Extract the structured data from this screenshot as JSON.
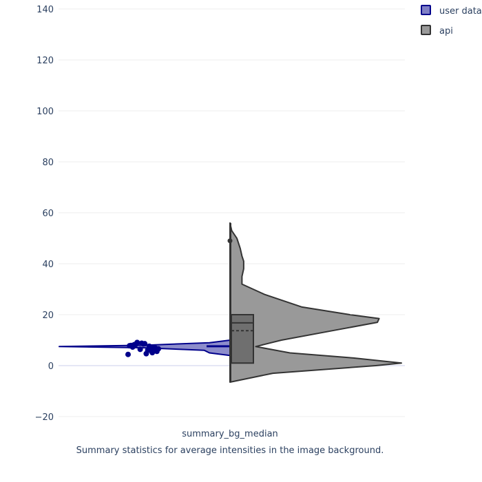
{
  "chart_data": {
    "type": "violin",
    "title": "",
    "xlabel": "",
    "ylabel": "",
    "ylim": [
      -24,
      140
    ],
    "yticks": [
      -20,
      0,
      20,
      40,
      60,
      80,
      100,
      120,
      140
    ],
    "ytick_labels": [
      "−20",
      "0",
      "20",
      "40",
      "60",
      "80",
      "100",
      "120",
      "140"
    ],
    "categories": [
      "summary_bg_median"
    ],
    "caption": "Summary statistics for average intensities in the image background.",
    "grid": true,
    "legend_position": "top-right",
    "series": [
      {
        "name": "user data",
        "side": "negative",
        "color": "#00008b",
        "fill": "#7f7fc5",
        "density": [
          [
            4.0,
            0.0
          ],
          [
            5.0,
            0.12
          ],
          [
            6.0,
            0.15
          ],
          [
            7.0,
            0.5
          ],
          [
            7.5,
            1.0
          ],
          [
            8.0,
            0.5
          ],
          [
            9.0,
            0.12
          ],
          [
            10.0,
            0.0
          ]
        ],
        "box": {
          "q1": 7.2,
          "median": 7.6,
          "q3": 8.0
        },
        "points": [
          7.6,
          8.2,
          5.6,
          6.4,
          8.6,
          4.4,
          7.0,
          9.1,
          6.1,
          7.9,
          5.1,
          8.8,
          6.9,
          7.3,
          4.7,
          8.3,
          6.6,
          7.8,
          5.9,
          8.5
        ]
      },
      {
        "name": "api",
        "side": "positive",
        "color": "#333333",
        "fill": "#999999",
        "density": [
          [
            -6.5,
            0.0
          ],
          [
            -3.0,
            0.25
          ],
          [
            0.0,
            0.85
          ],
          [
            1.0,
            1.0
          ],
          [
            3.0,
            0.72
          ],
          [
            5.0,
            0.35
          ],
          [
            7.5,
            0.15
          ],
          [
            10.0,
            0.3
          ],
          [
            14.0,
            0.62
          ],
          [
            17.0,
            0.86
          ],
          [
            18.5,
            0.87
          ],
          [
            20.0,
            0.7
          ],
          [
            23.0,
            0.42
          ],
          [
            28.0,
            0.2
          ],
          [
            32.0,
            0.07
          ],
          [
            35.0,
            0.07
          ],
          [
            38.0,
            0.08
          ],
          [
            41.0,
            0.08
          ],
          [
            43.0,
            0.07
          ],
          [
            46.0,
            0.06
          ],
          [
            50.0,
            0.04
          ],
          [
            53.0,
            0.01
          ],
          [
            56.0,
            0.0
          ]
        ],
        "box": {
          "q1": 1.0,
          "median": 16.8,
          "q3": 20.0,
          "mean": 13.7,
          "whisker_low": -6.5,
          "whisker_high": 56.0
        },
        "outlier": 49.0
      }
    ]
  }
}
